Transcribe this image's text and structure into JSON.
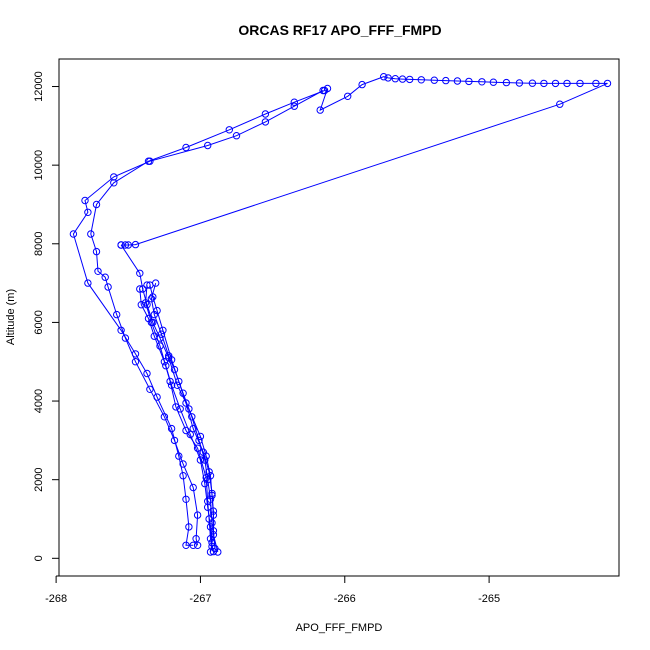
{
  "chart_data": {
    "type": "line",
    "title": "ORCAS RF17 APO_FFF_FMPD",
    "xlabel": "APO_FFF_FMPD",
    "ylabel": "Altitude (m)",
    "xlim": [
      -267.98,
      -264.1
    ],
    "ylim": [
      -450,
      12700
    ],
    "xticks": [
      -268,
      -267,
      -266,
      -265
    ],
    "xtick_labels": [
      "-268",
      "-267",
      "-266",
      "-265"
    ],
    "yticks": [
      0,
      2000,
      4000,
      6000,
      8000,
      10000,
      12000
    ],
    "ytick_labels": [
      "0",
      "2000",
      "4000",
      "6000",
      "8000",
      "10000",
      "12000"
    ],
    "grid": false,
    "legend": "none",
    "series_color": "#0000ff",
    "marker": "open-circle",
    "series": [
      {
        "values": [
          [
            -266.15,
            11900
          ],
          [
            -266.35,
            11500
          ],
          [
            -266.55,
            11100
          ],
          [
            -266.75,
            10750
          ],
          [
            -266.95,
            10500
          ],
          [
            -267.35,
            10100
          ],
          [
            -267.6,
            9700
          ],
          [
            -267.8,
            9100
          ],
          [
            -267.78,
            8800
          ],
          [
            -267.88,
            8250
          ],
          [
            -267.78,
            7000
          ],
          [
            -267.55,
            5800
          ],
          [
            -267.45,
            5200
          ],
          [
            -267.37,
            4700
          ],
          [
            -267.3,
            4100
          ],
          [
            -267.2,
            3300
          ],
          [
            -267.15,
            2600
          ],
          [
            -267.12,
            2100
          ],
          [
            -267.1,
            1500
          ],
          [
            -267.08,
            800
          ],
          [
            -267.1,
            330
          ],
          [
            -267.05,
            330
          ]
        ]
      },
      {
        "values": [
          [
            -266.14,
            11900
          ],
          [
            -266.35,
            11600
          ],
          [
            -266.55,
            11300
          ],
          [
            -266.8,
            10900
          ],
          [
            -267.1,
            10450
          ],
          [
            -267.36,
            10100
          ],
          [
            -267.6,
            9550
          ],
          [
            -267.72,
            9000
          ],
          [
            -267.76,
            8250
          ],
          [
            -267.72,
            7800
          ],
          [
            -267.71,
            7300
          ],
          [
            -267.66,
            7150
          ],
          [
            -267.64,
            6900
          ],
          [
            -267.58,
            6200
          ],
          [
            -267.52,
            5600
          ],
          [
            -267.45,
            5000
          ],
          [
            -267.35,
            4300
          ],
          [
            -267.25,
            3600
          ],
          [
            -267.18,
            3000
          ],
          [
            -267.12,
            2400
          ],
          [
            -267.05,
            1800
          ],
          [
            -267.02,
            1100
          ],
          [
            -267.03,
            500
          ],
          [
            -267.02,
            330
          ]
        ]
      },
      {
        "values": [
          [
            -266.12,
            11950
          ],
          [
            -266.17,
            11400
          ],
          [
            -265.98,
            11750
          ],
          [
            -265.88,
            12050
          ],
          [
            -265.73,
            12250
          ],
          [
            -265.7,
            12220
          ],
          [
            -265.65,
            12200
          ],
          [
            -265.6,
            12190
          ],
          [
            -265.55,
            12180
          ],
          [
            -265.47,
            12170
          ],
          [
            -265.38,
            12160
          ],
          [
            -265.3,
            12150
          ],
          [
            -265.22,
            12140
          ],
          [
            -265.14,
            12130
          ],
          [
            -265.05,
            12120
          ],
          [
            -264.97,
            12110
          ],
          [
            -264.88,
            12100
          ],
          [
            -264.79,
            12090
          ],
          [
            -264.7,
            12085
          ],
          [
            -264.62,
            12080
          ],
          [
            -264.54,
            12080
          ],
          [
            -264.46,
            12080
          ],
          [
            -264.37,
            12080
          ],
          [
            -264.26,
            12080
          ],
          [
            -264.18,
            12080
          ],
          [
            -264.51,
            11550
          ],
          [
            -267.45,
            7980
          ],
          [
            -267.5,
            7970
          ],
          [
            -267.52,
            7970
          ],
          [
            -267.55,
            7970
          ]
        ]
      },
      {
        "values": [
          [
            -267.55,
            7970
          ],
          [
            -267.42,
            7250
          ],
          [
            -267.4,
            6850
          ],
          [
            -267.37,
            6450
          ],
          [
            -267.33,
            6000
          ],
          [
            -267.28,
            5600
          ],
          [
            -267.22,
            5100
          ],
          [
            -267.16,
            4400
          ],
          [
            -267.08,
            3800
          ],
          [
            -267.0,
            3100
          ],
          [
            -266.96,
            2600
          ],
          [
            -266.93,
            2100
          ],
          [
            -266.92,
            1600
          ],
          [
            -266.91,
            1100
          ],
          [
            -266.91,
            600
          ],
          [
            -266.88,
            160
          ]
        ]
      },
      {
        "values": [
          [
            -267.35,
            6950
          ],
          [
            -267.33,
            6650
          ],
          [
            -267.3,
            6300
          ],
          [
            -267.26,
            5800
          ],
          [
            -267.2,
            5050
          ],
          [
            -267.15,
            4500
          ],
          [
            -267.1,
            3950
          ],
          [
            -267.05,
            3300
          ],
          [
            -266.98,
            2700
          ],
          [
            -266.94,
            2200
          ],
          [
            -266.92,
            1650
          ],
          [
            -266.91,
            1200
          ],
          [
            -266.91,
            700
          ],
          [
            -266.9,
            250
          ]
        ]
      },
      {
        "values": [
          [
            -267.31,
            7000
          ],
          [
            -267.34,
            6600
          ],
          [
            -267.32,
            6200
          ],
          [
            -267.27,
            5700
          ],
          [
            -267.22,
            5150
          ],
          [
            -267.18,
            4800
          ],
          [
            -267.12,
            4200
          ],
          [
            -267.06,
            3600
          ],
          [
            -267.01,
            3000
          ],
          [
            -266.97,
            2500
          ],
          [
            -266.95,
            2000
          ],
          [
            -266.93,
            1500
          ],
          [
            -266.92,
            900
          ],
          [
            -266.92,
            400
          ],
          [
            -266.93,
            160
          ]
        ]
      },
      {
        "values": [
          [
            -267.42,
            6850
          ],
          [
            -267.41,
            6450
          ],
          [
            -267.36,
            6100
          ],
          [
            -267.32,
            5650
          ],
          [
            -267.25,
            5000
          ],
          [
            -267.21,
            4500
          ],
          [
            -267.17,
            3850
          ],
          [
            -267.1,
            3250
          ],
          [
            -267.02,
            2800
          ],
          [
            -266.96,
            2050
          ],
          [
            -266.95,
            1450
          ],
          [
            -266.94,
            1000
          ],
          [
            -266.93,
            500
          ],
          [
            -266.91,
            170
          ]
        ]
      },
      {
        "values": [
          [
            -267.37,
            6950
          ],
          [
            -267.38,
            6500
          ],
          [
            -267.34,
            6000
          ],
          [
            -267.28,
            5400
          ],
          [
            -267.24,
            4900
          ],
          [
            -267.2,
            4400
          ],
          [
            -267.14,
            3800
          ],
          [
            -267.07,
            3150
          ],
          [
            -267.0,
            2500
          ],
          [
            -266.97,
            1900
          ],
          [
            -266.95,
            1300
          ],
          [
            -266.93,
            800
          ],
          [
            -266.92,
            300
          ]
        ]
      }
    ]
  }
}
